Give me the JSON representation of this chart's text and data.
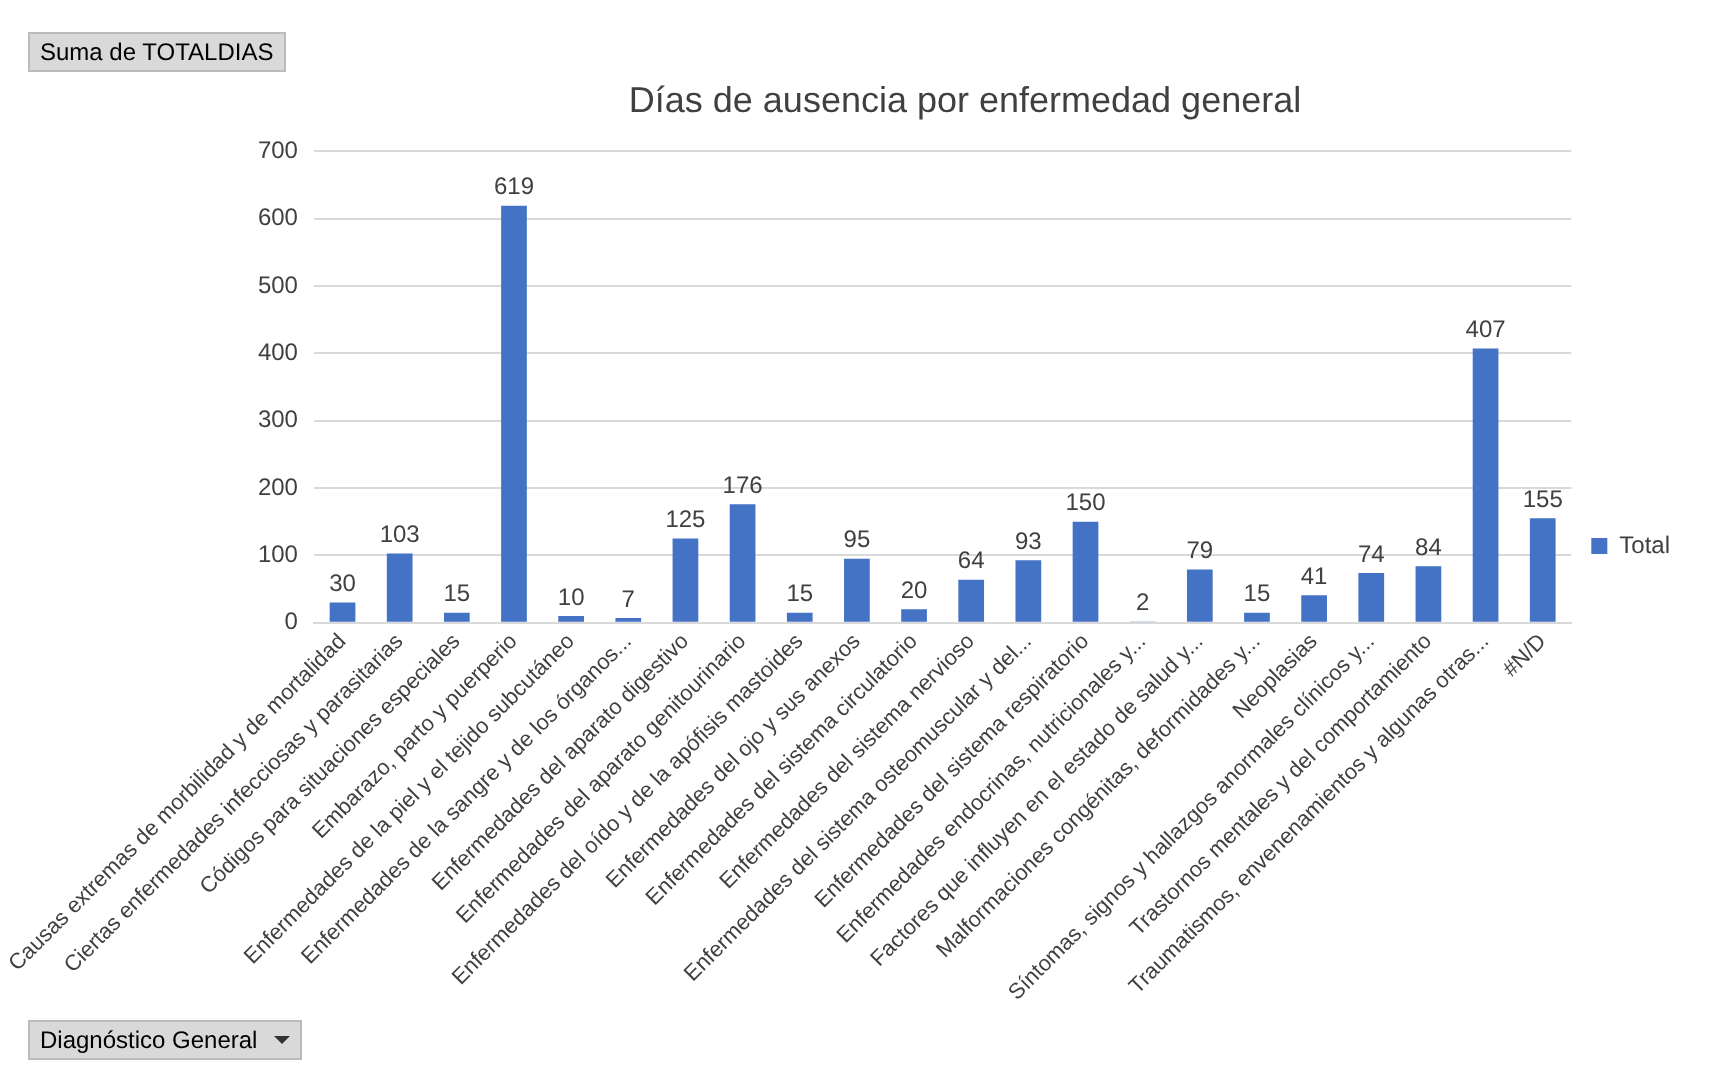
{
  "chart_data": {
    "type": "bar",
    "title": "Días de ausencia por enfermedad general",
    "categories": [
      "Causas extremas de morbilidad y de mortalidad",
      "Ciertas enfermedades infecciosas y parasitarias",
      "Códigos para situaciones especiales",
      "Embarazo, parto y puerperio",
      "Enfermedades de la piel y el tejido subcutáneo",
      "Enfermedades de la sangre y de los órganos...",
      "Enfermedades del aparato digestivo",
      "Enfermedades del aparato genitourinario",
      "Enfermedades del oído y de la apófisis mastoides",
      "Enfermedades del ojo y sus anexos",
      "Enfermedades del sistema circulatorio",
      "Enfermedades del sistema nervioso",
      "Enfermedades del sistema osteomuscular y del...",
      "Enfermedades del sistema respiratorio",
      "Enfermedades endocrinas, nutricionales y...",
      "Factores que influyen en el estado de salud y...",
      "Malformaciones congénitas, deformidades y...",
      "Neoplasias",
      "Síntomas, signos y hallazgos anormales clínicos y...",
      "Trastornos mentales y del comportamiento",
      "Traumatismos, envenenamientos y algunas otras...",
      "#N/D"
    ],
    "series": [
      {
        "name": "Total",
        "color": "#4472c4",
        "values": [
          30,
          103,
          15,
          619,
          10,
          7,
          125,
          176,
          15,
          95,
          20,
          64,
          93,
          150,
          2,
          79,
          15,
          41,
          74,
          84,
          407,
          155
        ]
      }
    ],
    "ylim": [
      0,
      700
    ],
    "yticks": [
      0,
      100,
      200,
      300,
      400,
      500,
      600,
      700
    ],
    "grid": "y",
    "legend": "right",
    "data_labels": true,
    "annotations": [
      "Suma de TOTALDIAS",
      "Diagnóstico General"
    ]
  }
}
